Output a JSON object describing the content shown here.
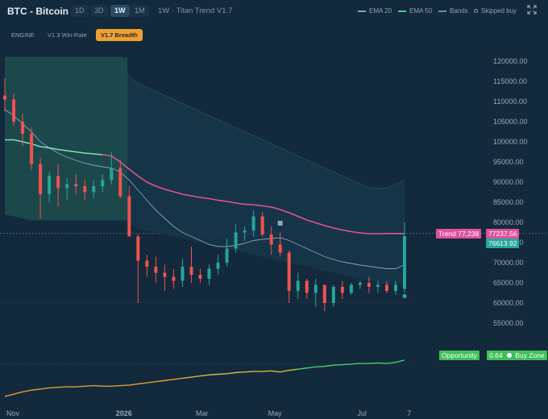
{
  "header": {
    "symbol_title": "BTC - Bitcoin",
    "timeframes": [
      "1D",
      "3D",
      "1W",
      "1M"
    ],
    "active_timeframe": "1W",
    "subtitle": "1W · Titan Trend V1.7",
    "legend": [
      {
        "label": "EMA 20",
        "color": "#8aa2b8",
        "kind": "line"
      },
      {
        "label": "EMA 50",
        "color": "#3fd08a",
        "kind": "line"
      },
      {
        "label": "Bands",
        "color": "#6f8aa0",
        "kind": "line"
      },
      {
        "label": "Skipped buy",
        "color": "#8ea2b4",
        "kind": "dot"
      }
    ],
    "expand_icon": "expand-icon"
  },
  "modes": [
    "ENGINE",
    "V1.3 Win-Rate",
    "V1.7 Breadth"
  ],
  "active_mode": "V1.7 Breadth",
  "tags": {
    "trend_label": "Trend 77,238",
    "trend_value": "77237.56",
    "price_value": "76613.92",
    "opportunity_label": "Opportunity",
    "opportunity_value": "0.64",
    "opportunity_zone": "Buy Zone"
  },
  "colors": {
    "up": "#26a69a",
    "down": "#ef5350",
    "trend": "#e0519a",
    "ema": "#8aa2b8",
    "band_fill": "#1d4a4c",
    "opportunity_line_low": "#e0a030",
    "opportunity_line_high": "#3fd070",
    "tag_trend": "#e0519a",
    "tag_price": "#26a69a",
    "tag_opportunity": "#3fbf5a"
  },
  "chart_data": {
    "type": "candlestick",
    "y_ticks": [
      "120000.00",
      "115000.00",
      "110000.00",
      "105000.00",
      "100000.00",
      "95000.00",
      "90000.00",
      "85000.00",
      "80000.00",
      "75000.00",
      "70000.00",
      "65000.00",
      "60000.00",
      "55000.00"
    ],
    "ylim": [
      50000,
      123000
    ],
    "x_labels": [
      "Nov",
      "2026",
      "Mar",
      "May",
      "Jul",
      "7"
    ],
    "dates": [
      "2025-10-13",
      "2025-10-20",
      "2025-10-27",
      "2025-11-03",
      "2025-11-10",
      "2025-11-17",
      "2025-11-24",
      "2025-12-01",
      "2025-12-08",
      "2025-12-15",
      "2025-12-22",
      "2025-12-29",
      "2026-01-05",
      "2026-01-12",
      "2026-01-19",
      "2026-01-26",
      "2026-02-02",
      "2026-02-09",
      "2026-02-16",
      "2026-02-23",
      "2026-03-02",
      "2026-03-09",
      "2026-03-16",
      "2026-03-23",
      "2026-03-30",
      "2026-04-06",
      "2026-04-13",
      "2026-04-20",
      "2026-04-27",
      "2026-05-04",
      "2026-05-11",
      "2026-05-18",
      "2026-05-25",
      "2026-06-01",
      "2026-06-08",
      "2026-06-15",
      "2026-06-22",
      "2026-06-29",
      "2026-07-06",
      "2026-07-13",
      "2026-07-20",
      "2026-07-27",
      "2026-08-03",
      "2026-08-10",
      "2026-08-17",
      "2026-08-24"
    ],
    "candles": [
      {
        "o": 111500,
        "h": 115800,
        "l": 107500,
        "c": 110500
      },
      {
        "o": 110500,
        "h": 112000,
        "l": 104000,
        "c": 105000
      },
      {
        "o": 105000,
        "h": 107000,
        "l": 99000,
        "c": 102000
      },
      {
        "o": 102000,
        "h": 103500,
        "l": 93000,
        "c": 94500
      },
      {
        "o": 94500,
        "h": 96000,
        "l": 81000,
        "c": 87000
      },
      {
        "o": 87000,
        "h": 92500,
        "l": 85000,
        "c": 91500
      },
      {
        "o": 91500,
        "h": 94500,
        "l": 84000,
        "c": 88500
      },
      {
        "o": 88500,
        "h": 91000,
        "l": 85500,
        "c": 89500
      },
      {
        "o": 89500,
        "h": 92000,
        "l": 87000,
        "c": 89000
      },
      {
        "o": 89000,
        "h": 90500,
        "l": 85500,
        "c": 87500
      },
      {
        "o": 87500,
        "h": 90500,
        "l": 86000,
        "c": 89000
      },
      {
        "o": 89000,
        "h": 92000,
        "l": 87500,
        "c": 90500
      },
      {
        "o": 90500,
        "h": 97500,
        "l": 89500,
        "c": 93500
      },
      {
        "o": 93500,
        "h": 95500,
        "l": 86000,
        "c": 86500
      },
      {
        "o": 86500,
        "h": 89000,
        "l": 77000,
        "c": 76500
      },
      {
        "o": 76500,
        "h": 77000,
        "l": 60000,
        "c": 70500
      },
      {
        "o": 70500,
        "h": 72000,
        "l": 66500,
        "c": 69000
      },
      {
        "o": 69000,
        "h": 71500,
        "l": 65000,
        "c": 67500
      },
      {
        "o": 67500,
        "h": 69500,
        "l": 63000,
        "c": 66500
      },
      {
        "o": 66500,
        "h": 68500,
        "l": 63500,
        "c": 65500
      },
      {
        "o": 65500,
        "h": 71000,
        "l": 64000,
        "c": 69000
      },
      {
        "o": 69000,
        "h": 74000,
        "l": 65000,
        "c": 67000
      },
      {
        "o": 67000,
        "h": 68500,
        "l": 65000,
        "c": 66000
      },
      {
        "o": 66000,
        "h": 69500,
        "l": 64500,
        "c": 68500
      },
      {
        "o": 68500,
        "h": 72000,
        "l": 67000,
        "c": 70000
      },
      {
        "o": 70000,
        "h": 76000,
        "l": 69000,
        "c": 73500
      },
      {
        "o": 73500,
        "h": 79500,
        "l": 72500,
        "c": 77500
      },
      {
        "o": 77500,
        "h": 79000,
        "l": 75500,
        "c": 78000
      },
      {
        "o": 78000,
        "h": 83000,
        "l": 76500,
        "c": 81500
      },
      {
        "o": 81500,
        "h": 82500,
        "l": 76500,
        "c": 77000
      },
      {
        "o": 77000,
        "h": 79000,
        "l": 72000,
        "c": 74500
      },
      {
        "o": 74500,
        "h": 77500,
        "l": 71500,
        "c": 72500
      },
      {
        "o": 72500,
        "h": 73000,
        "l": 60000,
        "c": 63000
      },
      {
        "o": 63000,
        "h": 67500,
        "l": 61000,
        "c": 65500
      },
      {
        "o": 65500,
        "h": 66000,
        "l": 61000,
        "c": 62500
      },
      {
        "o": 62500,
        "h": 66000,
        "l": 59000,
        "c": 64500
      },
      {
        "o": 64500,
        "h": 64500,
        "l": 58000,
        "c": 60000
      },
      {
        "o": 60000,
        "h": 64500,
        "l": 59000,
        "c": 64000
      },
      {
        "o": 64000,
        "h": 65500,
        "l": 61000,
        "c": 62500
      },
      {
        "o": 62500,
        "h": 65000,
        "l": 62000,
        "c": 64500
      },
      {
        "o": 64500,
        "h": 65500,
        "l": 63500,
        "c": 65000
      },
      {
        "o": 65000,
        "h": 66500,
        "l": 62500,
        "c": 64000
      },
      {
        "o": 64000,
        "h": 65500,
        "l": 62500,
        "c": 64500
      },
      {
        "o": 64500,
        "h": 65500,
        "l": 62500,
        "c": 63000
      },
      {
        "o": 63000,
        "h": 65500,
        "l": 62000,
        "c": 64500
      },
      {
        "o": 63500,
        "h": 80000,
        "l": 62500,
        "c": 76600
      }
    ],
    "trend": [
      100500,
      100500,
      100000,
      99500,
      98800,
      98500,
      98100,
      97800,
      97500,
      97200,
      97000,
      96800,
      96500,
      95000,
      93200,
      91500,
      90000,
      89000,
      88200,
      87600,
      87000,
      86600,
      86200,
      85900,
      85500,
      85200,
      84800,
      84500,
      84400,
      84100,
      83800,
      83200,
      82400,
      81500,
      80600,
      79900,
      79200,
      78600,
      78100,
      77700,
      77400,
      77200,
      77200,
      77238,
      77238,
      77238
    ],
    "ema": [
      108000,
      106500,
      104500,
      102500,
      100000,
      98500,
      97200,
      96200,
      95400,
      94700,
      94200,
      93800,
      93500,
      92500,
      90500,
      88000,
      85500,
      83000,
      81000,
      79000,
      77500,
      76500,
      75500,
      74500,
      74000,
      74000,
      74300,
      74800,
      75500,
      75800,
      76000,
      76200,
      75500,
      74500,
      73500,
      72500,
      71500,
      70800,
      70200,
      69800,
      69400,
      69100,
      68800,
      68500,
      68500,
      69500
    ],
    "upper_band": [
      121000,
      121000,
      121000,
      121000,
      121000,
      121000,
      121000,
      121000,
      121000,
      121000,
      121000,
      121000,
      121000,
      121000,
      116000,
      114500,
      113500,
      112500,
      111500,
      110500,
      109500,
      108500,
      107500,
      106500,
      105500,
      104500,
      103500,
      102500,
      101500,
      100500,
      99500,
      98500,
      97500,
      96500,
      95500,
      94500,
      93500,
      92500,
      91500,
      90500,
      89500,
      88500,
      88500,
      88500,
      89500,
      90500
    ],
    "lower_band": [
      82000,
      81500,
      81000,
      80500,
      80500,
      80500,
      80500,
      80500,
      80500,
      80500,
      80500,
      80500,
      80500,
      80500,
      79500,
      78500,
      78000,
      77500,
      77000,
      76500,
      76000,
      75500,
      75000,
      74500,
      74000,
      73500,
      73000,
      72500,
      72000,
      71500,
      71000,
      70500,
      70000,
      69500,
      69000,
      68500,
      68000,
      67500,
      67000,
      66500,
      66000,
      65500,
      65000,
      64500,
      64500,
      64500
    ],
    "band_highlight_range": [
      0,
      13
    ],
    "skipped_buy": [
      {
        "index": 45,
        "value": 61700
      }
    ],
    "marker_squares": [
      {
        "index": 31,
        "value": 79800
      }
    ],
    "opportunity": [
      0.0,
      0.04,
      0.08,
      0.11,
      0.13,
      0.15,
      0.16,
      0.17,
      0.17,
      0.18,
      0.19,
      0.18,
      0.18,
      0.19,
      0.2,
      0.22,
      0.24,
      0.26,
      0.28,
      0.3,
      0.32,
      0.34,
      0.36,
      0.38,
      0.39,
      0.4,
      0.42,
      0.43,
      0.44,
      0.44,
      0.45,
      0.43,
      0.46,
      0.48,
      0.5,
      0.52,
      0.53,
      0.55,
      0.56,
      0.57,
      0.58,
      0.58,
      0.59,
      0.58,
      0.6,
      0.64
    ]
  }
}
